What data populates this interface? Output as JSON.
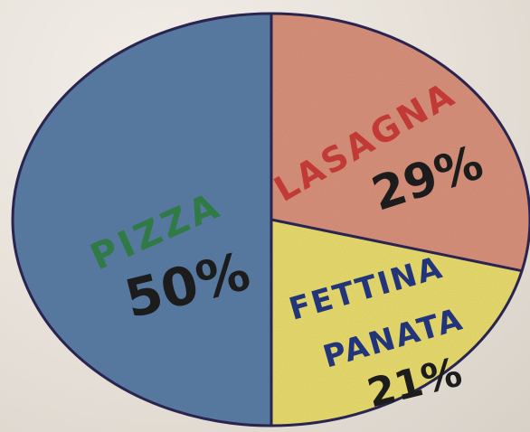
{
  "chart_data": {
    "type": "pie",
    "slices": [
      {
        "label": "PIZZA",
        "value": 50,
        "value_text": "50%",
        "fill": "#5b7ea6",
        "label_color": "#2f7a45"
      },
      {
        "label": "LASAGNA",
        "value": 29,
        "value_text": "29%",
        "fill": "#d9927c",
        "label_color": "#c23a36"
      },
      {
        "label": "FETTINA PANATA",
        "value": 21,
        "value_text": "21%",
        "fill": "#e9dc6e",
        "label_color": "#22357a"
      }
    ]
  }
}
